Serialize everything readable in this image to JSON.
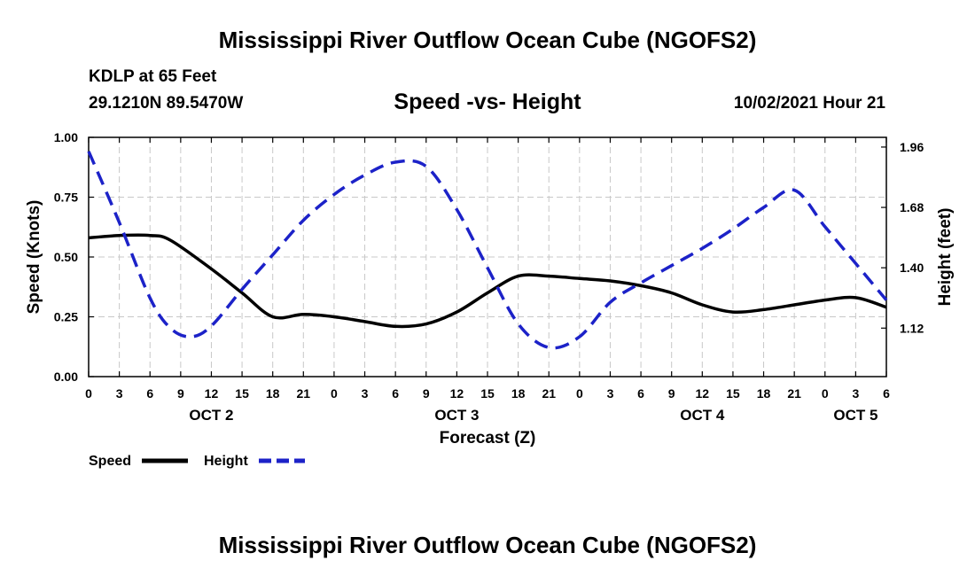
{
  "header": {
    "title": "Mississippi River Outflow Ocean Cube (NGOFS2)",
    "footer_title": "Mississippi River Outflow Ocean Cube (NGOFS2)",
    "station": "KDLP at 65 Feet",
    "location": "29.1210N  89.5470W",
    "date": "10/02/2021 Hour 21"
  },
  "chart_data": {
    "type": "line",
    "title": "Speed -vs- Height",
    "xlabel": "Forecast (Z)",
    "ylabel": "Speed (Knots)",
    "y2label": "Height (feet)",
    "xlim": [
      0,
      78
    ],
    "ylim": [
      0,
      1.0
    ],
    "y2lim": [
      0.895,
      2.005
    ],
    "grid": true,
    "x_ticks": [
      0,
      3,
      6,
      9,
      12,
      15,
      18,
      21,
      24,
      27,
      30,
      33,
      36,
      39,
      42,
      45,
      48,
      51,
      54,
      57,
      60,
      63,
      66,
      69,
      72,
      75,
      78
    ],
    "x_tick_labels": [
      "0",
      "3",
      "6",
      "9",
      "12",
      "15",
      "18",
      "21",
      "0",
      "3",
      "6",
      "9",
      "12",
      "15",
      "18",
      "21",
      "0",
      "3",
      "6",
      "9",
      "12",
      "15",
      "18",
      "21",
      "0",
      "3",
      "6"
    ],
    "day_labels": [
      {
        "x": 12,
        "label": "OCT 2"
      },
      {
        "x": 36,
        "label": "OCT 3"
      },
      {
        "x": 60,
        "label": "OCT 4"
      },
      {
        "x": 75,
        "label": "OCT 5"
      }
    ],
    "y_ticks": [
      0.0,
      0.25,
      0.5,
      0.75,
      1.0
    ],
    "y_tick_labels": [
      "0.00",
      "0.25",
      "0.50",
      "0.75",
      "1.00"
    ],
    "y2_ticks": [
      1.12,
      1.4,
      1.68,
      1.96
    ],
    "y2_tick_labels": [
      "1.12",
      "1.40",
      "1.68",
      "1.96"
    ],
    "legend": {
      "position": "bottom-left",
      "entries": [
        "Speed",
        "Height"
      ]
    },
    "series": [
      {
        "name": "Speed",
        "axis": "left",
        "color": "#000000",
        "style": "solid",
        "x": [
          0,
          3,
          6,
          8,
          12,
          15,
          18,
          21,
          24,
          27,
          30,
          33,
          36,
          39,
          42,
          45,
          48,
          51,
          54,
          57,
          60,
          63,
          66,
          69,
          72,
          75,
          78
        ],
        "values": [
          0.58,
          0.59,
          0.59,
          0.57,
          0.45,
          0.35,
          0.25,
          0.26,
          0.25,
          0.23,
          0.21,
          0.22,
          0.27,
          0.35,
          0.42,
          0.42,
          0.41,
          0.4,
          0.38,
          0.35,
          0.3,
          0.27,
          0.28,
          0.3,
          0.32,
          0.33,
          0.29
        ]
      },
      {
        "name": "Height",
        "axis": "right",
        "color": "#1c22c8",
        "style": "dashed",
        "x": [
          0,
          3,
          6,
          8,
          10,
          12,
          15,
          18,
          21,
          24,
          27,
          30,
          33,
          36,
          39,
          42,
          45,
          48,
          51,
          54,
          57,
          60,
          63,
          66,
          69,
          72,
          75,
          78
        ],
        "values": [
          1.94,
          1.61,
          1.26,
          1.12,
          1.08,
          1.13,
          1.3,
          1.46,
          1.62,
          1.74,
          1.83,
          1.89,
          1.87,
          1.67,
          1.4,
          1.14,
          1.03,
          1.08,
          1.24,
          1.33,
          1.41,
          1.49,
          1.58,
          1.68,
          1.76,
          1.59,
          1.42,
          1.25
        ]
      }
    ]
  }
}
